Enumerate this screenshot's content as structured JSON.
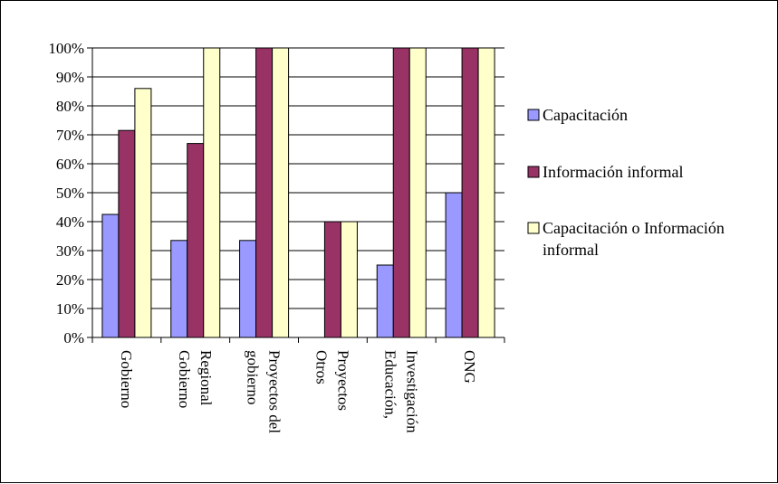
{
  "chart_data": {
    "type": "bar",
    "categories": [
      [
        "Gobierno"
      ],
      [
        "Regional",
        "Gobierno"
      ],
      [
        "Proyectos del",
        "gobierno"
      ],
      [
        "Proyectos",
        "Otros"
      ],
      [
        "Investigación",
        "Educación,"
      ],
      [
        "ONG"
      ]
    ],
    "series": [
      {
        "name": "Capacitación",
        "color": "#9999ff",
        "values": [
          42.5,
          33.5,
          33.5,
          0,
          25,
          50
        ]
      },
      {
        "name": "Información informal",
        "color": "#993366",
        "values": [
          71.5,
          67,
          100,
          40,
          100,
          100
        ]
      },
      {
        "name": "Capacitación o Información informal",
        "color": "#ffffcc",
        "values": [
          86,
          100,
          100,
          40,
          100,
          100
        ]
      }
    ],
    "legend": [
      {
        "text_lines": [
          "Capacitación"
        ],
        "color": "#9999ff"
      },
      {
        "text_lines": [
          "Información informal"
        ],
        "color": "#993366"
      },
      {
        "text_lines": [
          "Capacitación o Información",
          "informal"
        ],
        "color": "#ffffcc"
      }
    ],
    "yticks": [
      "0%",
      "10%",
      "20%",
      "30%",
      "40%",
      "50%",
      "60%",
      "70%",
      "80%",
      "90%",
      "100%"
    ],
    "ylim": [
      0,
      100
    ],
    "grid": true,
    "legend_position": "right",
    "title": "",
    "xlabel": "",
    "ylabel": ""
  }
}
